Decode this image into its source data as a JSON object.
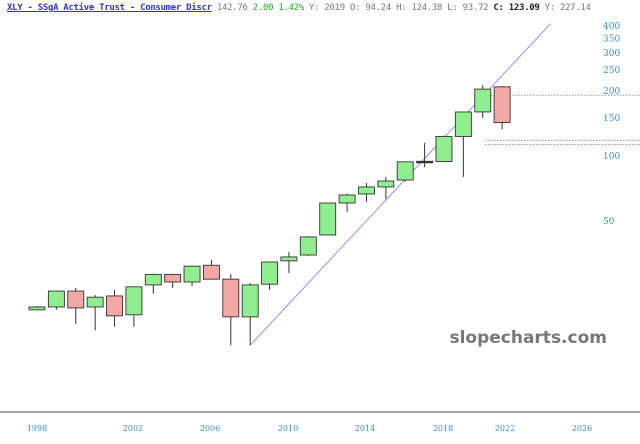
{
  "header": {
    "symbol_title": "XLY - SSgA Active Trust - Consumer Discr",
    "last": "142.76",
    "change": "2.00",
    "change_pct": "1.42%",
    "period": "Y: 2019",
    "open": "O:  94.24",
    "high": "H: 124.38",
    "low": "L:  93.72",
    "close_label": "C:",
    "close": "123.09",
    "extra": "Y: 227.14"
  },
  "watermark": "slopecharts.com",
  "colors": {
    "up": "#90ee90",
    "down": "#f4a7a7",
    "trendline": "#8888ee",
    "axis_text": "#3a8fc0"
  },
  "chart_data": {
    "type": "candlestick",
    "scale": "log",
    "ylim": [
      10,
      420
    ],
    "y_ticks": [
      50,
      100,
      150,
      200,
      250,
      300,
      350,
      400
    ],
    "x_ticks": [
      "1998",
      "2002",
      "2006",
      "2010",
      "2014",
      "2018",
      "2022",
      "2026"
    ],
    "grid": false,
    "candles": [
      {
        "year": 1998,
        "o": 19.4,
        "h": 20.2,
        "l": 19.4,
        "c": 20.0
      },
      {
        "year": 1999,
        "o": 20.0,
        "h": 23.8,
        "l": 19.4,
        "c": 23.7
      },
      {
        "year": 2000,
        "o": 23.7,
        "h": 24.5,
        "l": 16.7,
        "c": 19.8
      },
      {
        "year": 2001,
        "o": 20.0,
        "h": 22.7,
        "l": 15.6,
        "c": 22.2
      },
      {
        "year": 2002,
        "o": 22.5,
        "h": 24.0,
        "l": 16.2,
        "c": 18.2
      },
      {
        "year": 2003,
        "o": 18.4,
        "h": 24.8,
        "l": 16.2,
        "c": 24.8
      },
      {
        "year": 2004,
        "o": 25.3,
        "h": 28.5,
        "l": 23.0,
        "c": 28.3
      },
      {
        "year": 2005,
        "o": 28.3,
        "h": 28.5,
        "l": 24.5,
        "c": 26.1
      },
      {
        "year": 2006,
        "o": 26.1,
        "h": 31.0,
        "l": 25.0,
        "c": 30.9
      },
      {
        "year": 2007,
        "o": 31.2,
        "h": 33.0,
        "l": 26.9,
        "c": 26.9
      },
      {
        "year": 2008,
        "o": 26.9,
        "h": 28.4,
        "l": 13.3,
        "c": 18.0
      },
      {
        "year": 2009,
        "o": 18.0,
        "h": 25.8,
        "l": 13.3,
        "c": 25.3
      },
      {
        "year": 2010,
        "o": 25.5,
        "h": 32.5,
        "l": 24.0,
        "c": 32.3
      },
      {
        "year": 2011,
        "o": 32.7,
        "h": 35.9,
        "l": 28.7,
        "c": 34.1
      },
      {
        "year": 2012,
        "o": 34.8,
        "h": 42.5,
        "l": 34.5,
        "c": 42.2
      },
      {
        "year": 2013,
        "o": 43.1,
        "h": 60.8,
        "l": 43.0,
        "c": 60.6
      },
      {
        "year": 2014,
        "o": 60.6,
        "h": 67.0,
        "l": 55.1,
        "c": 66.0
      },
      {
        "year": 2015,
        "o": 66.7,
        "h": 75.0,
        "l": 61.3,
        "c": 71.9
      },
      {
        "year": 2016,
        "o": 71.9,
        "h": 80.0,
        "l": 63.2,
        "c": 76.6
      },
      {
        "year": 2017,
        "o": 77.4,
        "h": 94.2,
        "l": 76.0,
        "c": 94.0
      },
      {
        "year": 2018,
        "o": 94.5,
        "h": 114.9,
        "l": 88.9,
        "c": 94.0
      },
      {
        "year": 2019,
        "o": 94.24,
        "h": 124.38,
        "l": 93.72,
        "c": 123.09
      },
      {
        "year": 2020,
        "o": 123.0,
        "h": 160.0,
        "l": 80.0,
        "c": 159.9
      },
      {
        "year": 2021,
        "o": 160.0,
        "h": 213.0,
        "l": 150.0,
        "c": 204.0
      },
      {
        "year": 2022,
        "o": 209.0,
        "h": 211.0,
        "l": 133.0,
        "c": 142.76
      }
    ],
    "trendline": {
      "from": {
        "year": 2009,
        "value": 13.3
      },
      "to": {
        "year": 2024.5,
        "value": 410
      }
    },
    "horizontal_levels": [
      191,
      118,
      113
    ]
  }
}
